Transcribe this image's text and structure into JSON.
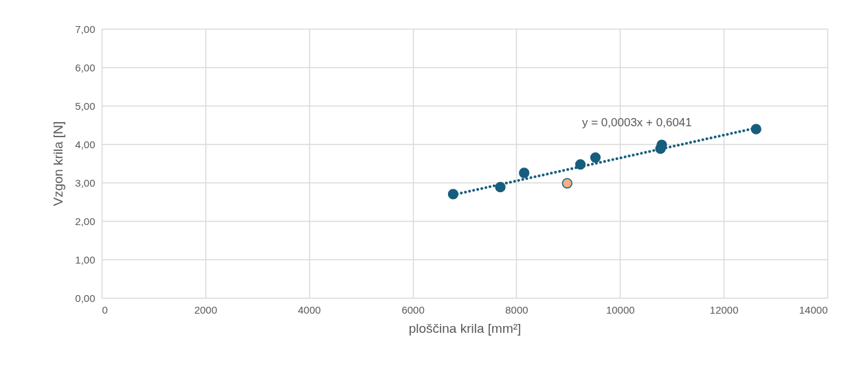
{
  "chart_data": {
    "type": "scatter",
    "xlabel": "ploščina krila [mm²]",
    "ylabel": "Vzgon krila [N]",
    "series": [
      {
        "color": "#175e7e",
        "x": [
          6780,
          7690,
          8150,
          9235,
          9525,
          10780,
          10805,
          12625
        ],
        "values": [
          2.7,
          2.88,
          3.25,
          3.47,
          3.65,
          3.88,
          3.98,
          4.39
        ]
      },
      {
        "color": "#f4b183",
        "x": [
          8980
        ],
        "values": [
          2.98
        ]
      },
      {
        "type": "line",
        "color": "#175e7e",
        "line_style": "dotted",
        "x": [
          6780,
          12625
        ],
        "values": [
          2.68,
          4.42
        ]
      }
    ],
    "annotations": [
      "y = 0,0003x + 0,6041"
    ],
    "xlim": [
      0,
      14000
    ],
    "xticks": [
      0,
      2000,
      4000,
      6000,
      8000,
      10000,
      12000,
      14000
    ],
    "ylim": [
      0,
      7
    ],
    "yticks": [
      {
        "value": 0,
        "label": "0,00"
      },
      {
        "value": 1,
        "label": "1,00"
      },
      {
        "value": 2,
        "label": "2,00"
      },
      {
        "value": 3,
        "label": "3,00"
      },
      {
        "value": 4,
        "label": "4,00"
      },
      {
        "value": 5,
        "label": "5,00"
      },
      {
        "value": 6,
        "label": "6,00"
      },
      {
        "value": 7,
        "label": "7,00"
      }
    ],
    "grid": true,
    "marker": "circle"
  }
}
